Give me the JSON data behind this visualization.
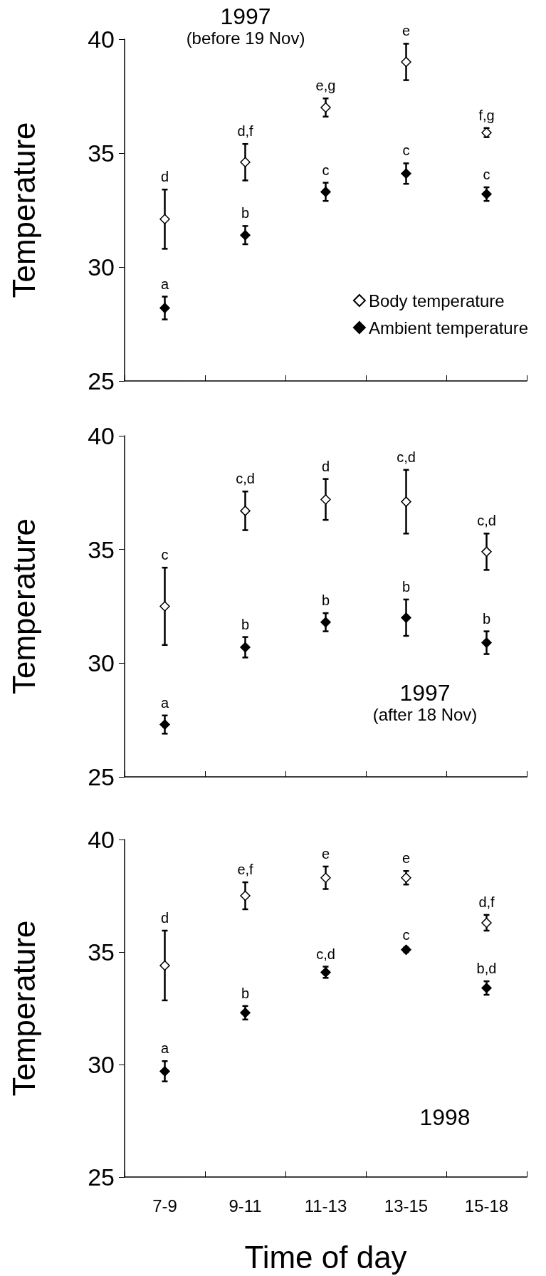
{
  "chart_data": [
    {
      "type": "scatter",
      "title": "1997",
      "subtitle": "(before 19 Nov)",
      "ylabel": "Temperature",
      "categories": [
        null,
        null,
        null,
        null,
        null
      ],
      "ylim": [
        25,
        40
      ],
      "yticks": [
        25,
        30,
        35,
        40
      ],
      "tick_labels": "y",
      "marker": "diamond",
      "legend": "bottom right",
      "series": [
        {
          "name": "Body temperature",
          "color": "#ffffff",
          "values": [
            32.1,
            34.6,
            37.0,
            39.0,
            35.9
          ],
          "errors": [
            1.3,
            0.8,
            0.4,
            0.8,
            0.2
          ],
          "value_labels": [
            "d",
            "d,f",
            "e,g",
            "e",
            "f,g"
          ]
        },
        {
          "name": "Ambient temperature",
          "color": "#000000",
          "values": [
            28.2,
            31.4,
            33.3,
            34.1,
            33.2
          ],
          "errors": [
            0.5,
            0.4,
            0.4,
            0.45,
            0.3
          ],
          "value_labels": [
            "a",
            "b",
            "c",
            "c",
            "c"
          ]
        }
      ]
    },
    {
      "type": "scatter",
      "title": "1997",
      "subtitle": "(after 18 Nov)",
      "ylabel": "Temperature",
      "categories": [
        null,
        null,
        null,
        null,
        null
      ],
      "ylim": [
        25,
        40
      ],
      "yticks": [
        25,
        30,
        35,
        40
      ],
      "tick_labels": "y",
      "marker": "diamond",
      "series": [
        {
          "color": "#ffffff",
          "values": [
            32.5,
            36.7,
            37.2,
            37.1,
            34.9
          ],
          "errors": [
            1.7,
            0.85,
            0.9,
            1.4,
            0.8
          ],
          "value_labels": [
            "c",
            "c,d",
            "d",
            "c,d",
            "c,d"
          ]
        },
        {
          "color": "#000000",
          "values": [
            27.3,
            30.7,
            31.8,
            32.0,
            30.9
          ],
          "errors": [
            0.4,
            0.45,
            0.4,
            0.8,
            0.5
          ],
          "value_labels": [
            "a",
            "b",
            "b",
            "b",
            "b"
          ]
        }
      ]
    },
    {
      "type": "scatter",
      "title": "1998",
      "xlabel": "Time of day",
      "ylabel": "Temperature",
      "categories": [
        "7-9",
        "9-11",
        "11-13",
        "13-15",
        "15-18"
      ],
      "ylim": [
        25,
        40
      ],
      "yticks": [
        25,
        30,
        35,
        40
      ],
      "marker": "diamond",
      "series": [
        {
          "color": "#ffffff",
          "values": [
            34.4,
            37.5,
            38.3,
            38.3,
            36.3
          ],
          "errors": [
            1.55,
            0.6,
            0.5,
            0.3,
            0.35
          ],
          "value_labels": [
            "d",
            "e,f",
            "e",
            "e",
            "d,f"
          ]
        },
        {
          "color": "#000000",
          "values": [
            29.7,
            32.3,
            34.1,
            35.1,
            33.4
          ],
          "errors": [
            0.45,
            0.3,
            0.25,
            0.1,
            0.3
          ],
          "value_labels": [
            "a",
            "b",
            "c,d",
            "c",
            "b,d"
          ]
        }
      ]
    }
  ]
}
